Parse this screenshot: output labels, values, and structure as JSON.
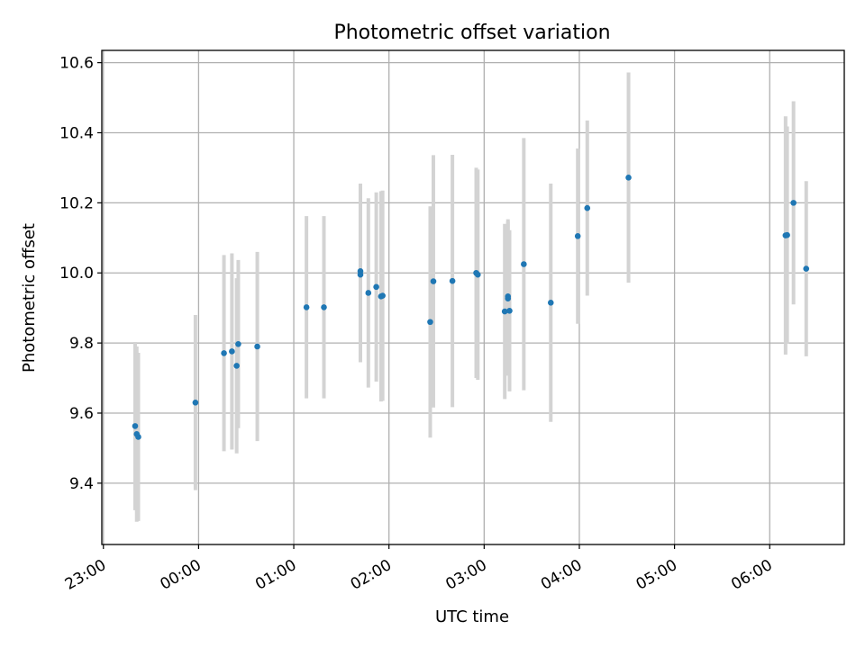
{
  "chart_data": {
    "type": "scatter",
    "title": "Photometric offset variation",
    "xlabel": "UTC time",
    "ylabel": "Photometric offset",
    "x_unit": "UTC time",
    "xlim": [
      "22:59",
      "06:47"
    ],
    "ylim": [
      9.225,
      10.635
    ],
    "x_ticks": [
      "23:00",
      "00:00",
      "01:00",
      "02:00",
      "03:00",
      "04:00",
      "05:00",
      "06:00"
    ],
    "y_ticks": [
      "9.4",
      "9.6",
      "9.8",
      "10.0",
      "10.2",
      "10.4",
      "10.6"
    ],
    "grid": true,
    "legend": "none",
    "colors": {
      "point": "#1f77b4",
      "errorbar": "#d3d3d3",
      "grid": "#b0b0b0"
    },
    "points": [
      {
        "x": "23:20",
        "y": 9.563,
        "err": 0.24
      },
      {
        "x": "23:21",
        "y": 9.54,
        "err": 0.25
      },
      {
        "x": "23:22",
        "y": 9.532,
        "err": 0.24
      },
      {
        "x": "23:58",
        "y": 9.63,
        "err": 0.25
      },
      {
        "x": "00:16",
        "y": 9.771,
        "err": 0.28
      },
      {
        "x": "00:21",
        "y": 9.776,
        "err": 0.28
      },
      {
        "x": "00:24",
        "y": 9.735,
        "err": 0.25
      },
      {
        "x": "00:25",
        "y": 9.797,
        "err": 0.24
      },
      {
        "x": "00:37",
        "y": 9.79,
        "err": 0.27
      },
      {
        "x": "01:08",
        "y": 9.902,
        "err": 0.26
      },
      {
        "x": "01:19",
        "y": 9.902,
        "err": 0.26
      },
      {
        "x": "01:42",
        "y": 10.005,
        "err": 0.25
      },
      {
        "x": "01:42",
        "y": 9.995,
        "err": 0.25
      },
      {
        "x": "01:47",
        "y": 9.943,
        "err": 0.27
      },
      {
        "x": "01:52",
        "y": 9.96,
        "err": 0.27
      },
      {
        "x": "01:55",
        "y": 9.933,
        "err": 0.3
      },
      {
        "x": "01:56",
        "y": 9.935,
        "err": 0.3
      },
      {
        "x": "02:26",
        "y": 9.86,
        "err": 0.33
      },
      {
        "x": "02:28",
        "y": 9.976,
        "err": 0.36
      },
      {
        "x": "02:40",
        "y": 9.977,
        "err": 0.36
      },
      {
        "x": "02:55",
        "y": 10.0,
        "err": 0.3
      },
      {
        "x": "02:56",
        "y": 9.995,
        "err": 0.3
      },
      {
        "x": "03:13",
        "y": 9.89,
        "err": 0.25
      },
      {
        "x": "03:15",
        "y": 9.933,
        "err": 0.22
      },
      {
        "x": "03:15",
        "y": 9.927,
        "err": 0.22
      },
      {
        "x": "03:16",
        "y": 9.892,
        "err": 0.23
      },
      {
        "x": "03:25",
        "y": 10.025,
        "err": 0.36
      },
      {
        "x": "03:42",
        "y": 9.915,
        "err": 0.34
      },
      {
        "x": "03:59",
        "y": 10.105,
        "err": 0.25
      },
      {
        "x": "04:05",
        "y": 10.185,
        "err": 0.25
      },
      {
        "x": "04:31",
        "y": 10.272,
        "err": 0.3
      },
      {
        "x": "06:10",
        "y": 10.107,
        "err": 0.34
      },
      {
        "x": "06:11",
        "y": 10.108,
        "err": 0.31
      },
      {
        "x": "06:15",
        "y": 10.2,
        "err": 0.29
      },
      {
        "x": "06:23",
        "y": 10.012,
        "err": 0.25
      }
    ]
  }
}
